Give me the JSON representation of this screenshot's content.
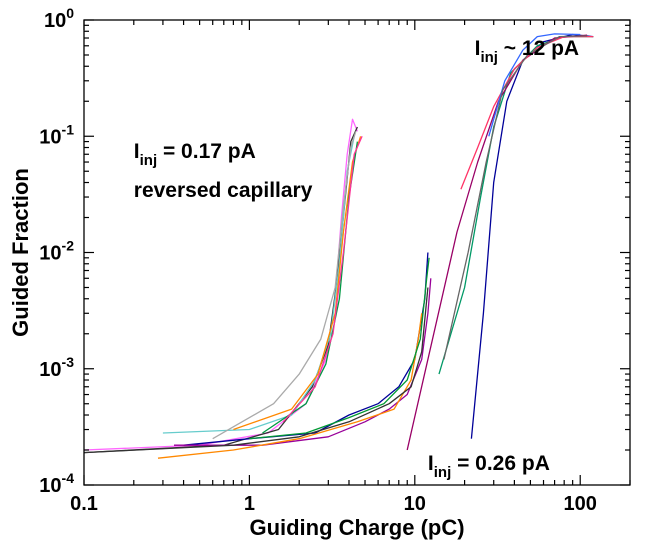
{
  "chart_data": {
    "type": "line",
    "xlabel": "Guiding Charge (pC)",
    "ylabel": "Guided Fraction",
    "xscale": "log",
    "yscale": "log",
    "xlim": [
      0.1,
      200
    ],
    "ylim": [
      0.0001,
      1
    ],
    "grid": false,
    "legend": "none",
    "x_ticks": [
      {
        "value": 0.1,
        "label": "0.1"
      },
      {
        "value": 1,
        "label": "1"
      },
      {
        "value": 10,
        "label": "10"
      },
      {
        "value": 100,
        "label": "100"
      }
    ],
    "y_ticks": [
      {
        "value": 0.0001,
        "base": "10",
        "exp": "-4"
      },
      {
        "value": 0.001,
        "base": "10",
        "exp": "-3"
      },
      {
        "value": 0.01,
        "base": "10",
        "exp": "-2"
      },
      {
        "value": 0.1,
        "base": "10",
        "exp": "-1"
      },
      {
        "value": 1,
        "base": "10",
        "exp": "0"
      }
    ],
    "annotations": [
      {
        "main": "I",
        "sub": "inj",
        "rest": " = 0.17 pA",
        "x": 0.2,
        "y": 0.065
      },
      {
        "main": "",
        "sub": "",
        "rest": "reversed capillary",
        "x": 0.2,
        "y": 0.03
      },
      {
        "main": "I",
        "sub": "inj",
        "rest": " ~ 12 pA",
        "x": 23,
        "y": 0.5
      },
      {
        "main": "I",
        "sub": "inj",
        "rest": " = 0.26 pA",
        "x": 12,
        "y": 0.000135
      }
    ],
    "series": [
      {
        "group": "reversed capillary 0.17 pA",
        "color": "#ff66ff",
        "points": [
          [
            0.1,
            0.0002
          ],
          [
            0.5,
            0.00022
          ],
          [
            1.3,
            0.00028
          ],
          [
            2.2,
            0.0005
          ],
          [
            2.9,
            0.0012
          ],
          [
            3.3,
            0.004
          ],
          [
            3.6,
            0.02
          ],
          [
            3.9,
            0.07
          ],
          [
            4.2,
            0.14
          ],
          [
            4.5,
            0.11
          ]
        ]
      },
      {
        "group": "reversed capillary 0.17 pA",
        "color": "#333333",
        "points": [
          [
            0.1,
            0.00019
          ],
          [
            0.7,
            0.00022
          ],
          [
            1.5,
            0.0003
          ],
          [
            2.4,
            0.0007
          ],
          [
            3.0,
            0.0016
          ],
          [
            3.4,
            0.006
          ],
          [
            3.8,
            0.03
          ],
          [
            4.1,
            0.09
          ],
          [
            4.5,
            0.12
          ]
        ]
      },
      {
        "group": "reversed capillary 0.17 pA",
        "color": "#66cccc",
        "points": [
          [
            0.3,
            0.00028
          ],
          [
            1.0,
            0.0003
          ],
          [
            1.8,
            0.0004
          ],
          [
            2.5,
            0.0008
          ],
          [
            3.1,
            0.002
          ],
          [
            3.5,
            0.008
          ],
          [
            3.9,
            0.05
          ],
          [
            4.3,
            0.1
          ]
        ]
      },
      {
        "group": "reversed capillary 0.17 pA",
        "color": "#aaaaaa",
        "points": [
          [
            0.6,
            0.00025
          ],
          [
            1.4,
            0.0005
          ],
          [
            2.0,
            0.0009
          ],
          [
            2.7,
            0.0018
          ],
          [
            3.3,
            0.005
          ],
          [
            3.7,
            0.025
          ],
          [
            4.1,
            0.08
          ],
          [
            4.4,
            0.11
          ]
        ]
      },
      {
        "group": "reversed capillary 0.17 pA",
        "color": "#ff8800",
        "points": [
          [
            0.8,
            0.0003
          ],
          [
            1.8,
            0.00045
          ],
          [
            2.6,
            0.0009
          ],
          [
            3.3,
            0.003
          ],
          [
            3.7,
            0.015
          ],
          [
            4.2,
            0.06
          ],
          [
            4.7,
            0.1
          ]
        ]
      },
      {
        "group": "reversed capillary 0.17 pA",
        "color": "#009944",
        "points": [
          [
            1.2,
            0.00028
          ],
          [
            2.2,
            0.0005
          ],
          [
            2.9,
            0.0011
          ],
          [
            3.5,
            0.004
          ],
          [
            4.0,
            0.03
          ],
          [
            4.5,
            0.09
          ]
        ]
      },
      {
        "group": "reversed capillary 0.17 pA",
        "color": "#ff3399",
        "points": [
          [
            1.6,
            0.00035
          ],
          [
            2.5,
            0.0007
          ],
          [
            3.2,
            0.002
          ],
          [
            3.7,
            0.01
          ],
          [
            4.3,
            0.07
          ],
          [
            4.8,
            0.1
          ]
        ]
      },
      {
        "group": "I ~ 12 pA",
        "color": "#000099",
        "points": [
          [
            22,
            0.00025
          ],
          [
            26,
            0.003
          ],
          [
            30,
            0.04
          ],
          [
            36,
            0.2
          ],
          [
            45,
            0.45
          ],
          [
            60,
            0.65
          ],
          [
            90,
            0.75
          ],
          [
            120,
            0.72
          ]
        ]
      },
      {
        "group": "I ~ 12 pA",
        "color": "#009966",
        "points": [
          [
            14,
            0.0009
          ],
          [
            20,
            0.005
          ],
          [
            25,
            0.03
          ],
          [
            30,
            0.12
          ],
          [
            38,
            0.35
          ],
          [
            55,
            0.6
          ],
          [
            80,
            0.72
          ],
          [
            120,
            0.72
          ]
        ]
      },
      {
        "group": "I ~ 12 pA",
        "color": "#990066",
        "points": [
          [
            9,
            0.0002
          ],
          [
            18,
            0.015
          ],
          [
            24,
            0.06
          ],
          [
            32,
            0.2
          ],
          [
            45,
            0.45
          ],
          [
            70,
            0.7
          ],
          [
            110,
            0.74
          ]
        ]
      },
      {
        "group": "I ~ 12 pA",
        "color": "#ff3366",
        "points": [
          [
            19,
            0.035
          ],
          [
            24,
            0.08
          ],
          [
            30,
            0.18
          ],
          [
            40,
            0.38
          ],
          [
            55,
            0.58
          ],
          [
            80,
            0.72
          ],
          [
            120,
            0.72
          ]
        ]
      },
      {
        "group": "I ~ 12 pA",
        "color": "#3366ff",
        "points": [
          [
            28,
            0.1
          ],
          [
            35,
            0.3
          ],
          [
            45,
            0.55
          ],
          [
            55,
            0.72
          ],
          [
            70,
            0.76
          ],
          [
            100,
            0.75
          ]
        ]
      },
      {
        "group": "I ~ 12 pA",
        "color": "#666666",
        "points": [
          [
            15,
            0.0012
          ],
          [
            21,
            0.01
          ],
          [
            27,
            0.06
          ],
          [
            34,
            0.25
          ],
          [
            48,
            0.5
          ],
          [
            75,
            0.72
          ],
          [
            110,
            0.73
          ]
        ]
      },
      {
        "group": "I = 0.26 pA",
        "color": "#000099",
        "points": [
          [
            0.4,
            0.00022
          ],
          [
            1.0,
            0.00025
          ],
          [
            2.5,
            0.00028
          ],
          [
            4,
            0.0004
          ],
          [
            6,
            0.0005
          ],
          [
            8,
            0.0007
          ],
          [
            10,
            0.0012
          ],
          [
            11.5,
            0.004
          ],
          [
            12,
            0.01
          ]
        ]
      },
      {
        "group": "I = 0.26 pA",
        "color": "#990099",
        "points": [
          [
            0.35,
            0.00022
          ],
          [
            1.2,
            0.00022
          ],
          [
            3,
            0.00026
          ],
          [
            5,
            0.00035
          ],
          [
            7,
            0.00045
          ],
          [
            9,
            0.0006
          ],
          [
            11,
            0.0012
          ],
          [
            12,
            0.003
          ],
          [
            12.5,
            0.006
          ]
        ]
      },
      {
        "group": "I = 0.26 pA",
        "color": "#ff8800",
        "points": [
          [
            0.28,
            0.00017
          ],
          [
            0.8,
            0.0002
          ],
          [
            2,
            0.00025
          ],
          [
            4.5,
            0.00035
          ],
          [
            7.5,
            0.00045
          ],
          [
            9.5,
            0.0008
          ],
          [
            10.5,
            0.0018
          ],
          [
            11,
            0.003
          ]
        ]
      },
      {
        "group": "I = 0.26 pA",
        "color": "#009933",
        "points": [
          [
            1,
            0.00025
          ],
          [
            2.2,
            0.00028
          ],
          [
            4,
            0.00038
          ],
          [
            6.5,
            0.0005
          ],
          [
            9,
            0.0008
          ],
          [
            10.8,
            0.0018
          ],
          [
            11.8,
            0.006
          ],
          [
            12.2,
            0.009
          ]
        ]
      },
      {
        "group": "I = 0.26 pA",
        "color": "#333333",
        "points": [
          [
            0.1,
            0.00019
          ],
          [
            0.8,
            0.00022
          ],
          [
            2,
            0.00026
          ],
          [
            4,
            0.00035
          ],
          [
            7,
            0.0005
          ],
          [
            9.5,
            0.0007
          ],
          [
            11,
            0.0014
          ],
          [
            12,
            0.005
          ]
        ]
      }
    ]
  }
}
